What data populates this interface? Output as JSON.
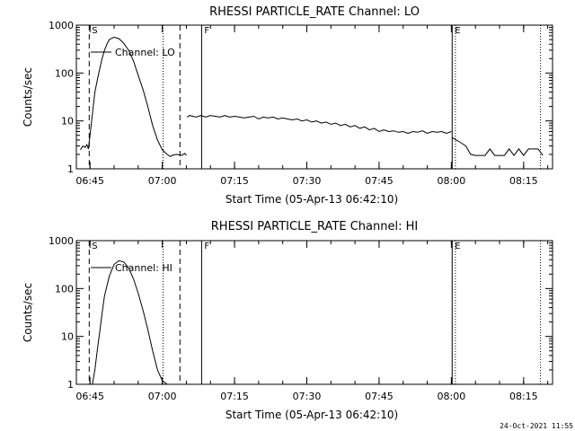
{
  "footer": {
    "timestamp": "24-Oct-2021 11:55"
  },
  "chart_data": [
    {
      "type": "line",
      "title": "RHESSI PARTICLE_RATE Channel: LO",
      "xlabel": "Start Time (05-Apr-13 06:42:10)",
      "ylabel": "Counts/sec",
      "yscale": "log",
      "ylim": [
        1,
        1000
      ],
      "xlim": [
        "06:42:10",
        "08:21:00"
      ],
      "xticks": [
        "06:45",
        "07:00",
        "07:15",
        "07:30",
        "07:45",
        "08:00",
        "08:15"
      ],
      "yticks": [
        "1",
        "10",
        "100",
        "1000"
      ],
      "legend": {
        "text": "Channel: LO",
        "placement": "top-left"
      },
      "markers": [
        {
          "label": "S",
          "time": "06:44:50",
          "style": "dashed"
        },
        {
          "label": "",
          "time": "07:03:40",
          "style": "dashed"
        },
        {
          "label": "",
          "time": "07:00:10",
          "style": "dotted"
        },
        {
          "label": "F",
          "time": "07:08:10",
          "style": "solid"
        },
        {
          "label": "E",
          "time": "08:00:10",
          "style": "solid"
        },
        {
          "label": "",
          "time": "08:00:50",
          "style": "dotted"
        },
        {
          "label": "",
          "time": "08:18:30",
          "style": "dotted"
        }
      ],
      "series": [
        {
          "segments": [
            {
              "x": [
                "06:43:00",
                "06:43:30",
                "06:44:00",
                "06:44:20",
                "06:44:40",
                "06:45:00",
                "06:45:20",
                "06:45:40",
                "06:46:00",
                "06:46:30",
                "06:47:00",
                "06:47:30",
                "06:48:00",
                "06:48:30",
                "06:49:00",
                "06:50:00",
                "06:51:00",
                "06:52:00",
                "06:53:00",
                "06:54:00",
                "06:55:00",
                "06:56:00",
                "06:57:00",
                "06:58:00",
                "06:59:00",
                "07:00:00",
                "07:01:00",
                "07:01:40",
                "07:02:00",
                "07:03:00",
                "07:04:00",
                "07:04:40",
                "07:05:00"
              ],
              "y": [
                2.5,
                3.0,
                2.8,
                3.2,
                2.6,
                5,
                10,
                20,
                40,
                70,
                120,
                200,
                300,
                400,
                500,
                560,
                520,
                420,
                300,
                180,
                90,
                45,
                20,
                8,
                4,
                2.5,
                2,
                1.8,
                1.9,
                2.0,
                1.9,
                2.1,
                1.9
              ]
            },
            {
              "x": [
                "07:05:10",
                "07:05:40",
                "07:06:20",
                "07:07:00",
                "07:08:00",
                "07:09:00",
                "07:10:00",
                "07:11:00",
                "07:12:00",
                "07:13:00",
                "07:14:00",
                "07:15:00",
                "07:16:00",
                "07:17:00",
                "07:18:00",
                "07:19:00",
                "07:20:00",
                "07:21:00",
                "07:22:00",
                "07:23:00",
                "07:24:00",
                "07:25:00",
                "07:26:00",
                "07:27:00",
                "07:28:00",
                "07:29:00",
                "07:30:00",
                "07:31:00",
                "07:32:00",
                "07:33:00",
                "07:34:00",
                "07:35:00",
                "07:36:00",
                "07:37:00",
                "07:38:00",
                "07:39:00",
                "07:40:00",
                "07:41:00",
                "07:42:00",
                "07:43:00",
                "07:44:00",
                "07:45:00",
                "07:46:00",
                "07:47:00",
                "07:48:00",
                "07:49:00",
                "07:50:00",
                "07:51:00",
                "07:52:00",
                "07:53:00",
                "07:54:00",
                "07:55:00",
                "07:56:00",
                "07:57:00",
                "07:58:00",
                "07:59:00",
                "08:00:00"
              ],
              "y": [
                12,
                13,
                12.5,
                12,
                13,
                12,
                13,
                12.5,
                12,
                13,
                12,
                12.5,
                12,
                11.5,
                12,
                12.5,
                11,
                12,
                11.5,
                12,
                11,
                11.5,
                11,
                10.5,
                11,
                10,
                10.5,
                9.5,
                10,
                9,
                9.5,
                8.5,
                9,
                8,
                8.5,
                7.5,
                8,
                7,
                7.5,
                6.5,
                7,
                6,
                6.5,
                6,
                6.2,
                5.8,
                6,
                5.5,
                6,
                5.8,
                6.2,
                5.5,
                6,
                5.8,
                6,
                5.5,
                6
              ]
            },
            {
              "x": [
                "08:00:10",
                "08:01:00",
                "08:02:00",
                "08:03:00",
                "08:04:00",
                "08:05:00",
                "08:06:00",
                "08:07:00",
                "08:08:00",
                "08:09:00",
                "08:10:00",
                "08:11:00",
                "08:12:00",
                "08:13:00",
                "08:14:00",
                "08:15:00",
                "08:16:00",
                "08:17:00",
                "08:18:00",
                "08:19:00"
              ],
              "y": [
                4.5,
                4,
                3.5,
                3,
                2,
                1.9,
                1.9,
                1.9,
                2.6,
                1.9,
                1.9,
                1.9,
                2.6,
                1.9,
                2.6,
                1.9,
                2.6,
                2.6,
                2.6,
                1.9
              ]
            }
          ]
        }
      ]
    },
    {
      "type": "line",
      "title": "RHESSI PARTICLE_RATE Channel: HI",
      "xlabel": "Start Time (05-Apr-13 06:42:10)",
      "ylabel": "Counts/sec",
      "yscale": "log",
      "ylim": [
        1,
        1000
      ],
      "xlim": [
        "06:42:10",
        "08:21:00"
      ],
      "xticks": [
        "06:45",
        "07:00",
        "07:15",
        "07:30",
        "07:45",
        "08:00",
        "08:15"
      ],
      "yticks": [
        "1",
        "10",
        "100",
        "1000"
      ],
      "legend": {
        "text": "Channel: HI",
        "placement": "top-left"
      },
      "markers": [
        {
          "label": "S",
          "time": "06:44:50",
          "style": "dashed"
        },
        {
          "label": "",
          "time": "07:03:40",
          "style": "dashed"
        },
        {
          "label": "",
          "time": "07:00:10",
          "style": "dotted"
        },
        {
          "label": "F",
          "time": "07:08:10",
          "style": "solid"
        },
        {
          "label": "E",
          "time": "08:00:10",
          "style": "solid"
        },
        {
          "label": "",
          "time": "08:00:50",
          "style": "dotted"
        },
        {
          "label": "",
          "time": "08:18:30",
          "style": "dotted"
        }
      ],
      "series": [
        {
          "segments": [
            {
              "x": [
                "06:45:30",
                "06:46:00",
                "06:46:30",
                "06:47:00",
                "06:47:30",
                "06:48:00",
                "06:49:00",
                "06:50:00",
                "06:51:00",
                "06:52:00",
                "06:53:00",
                "06:54:00",
                "06:55:00",
                "06:56:00",
                "06:57:00",
                "06:58:00",
                "06:59:00",
                "07:00:00",
                "07:01:00"
              ],
              "y": [
                1.0,
                2,
                5,
                12,
                30,
                70,
                180,
                320,
                380,
                360,
                270,
                160,
                80,
                35,
                14,
                5,
                2,
                1.2,
                1.0
              ]
            }
          ]
        }
      ]
    }
  ]
}
